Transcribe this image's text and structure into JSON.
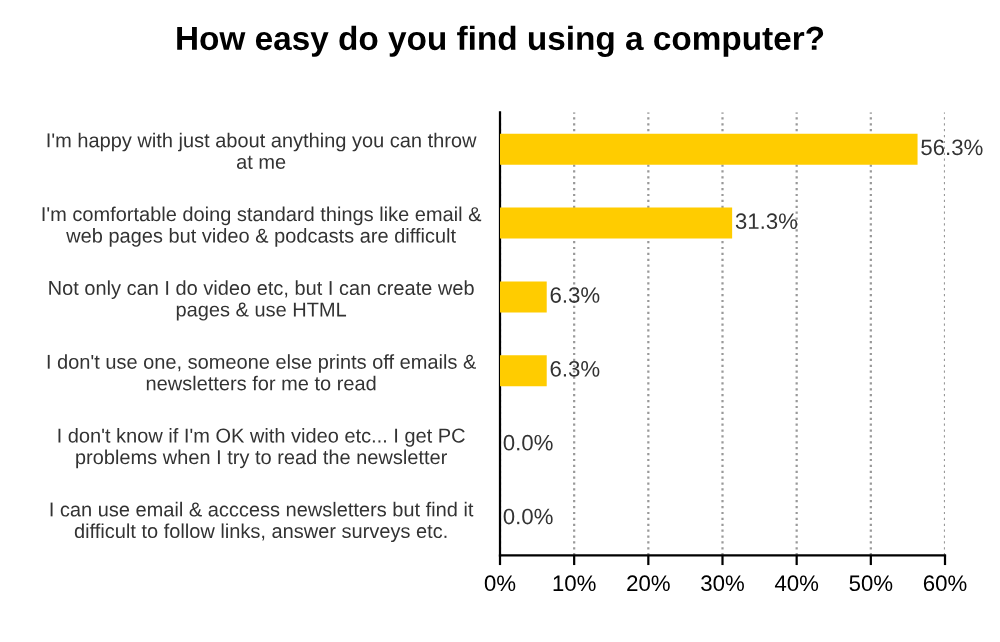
{
  "chart_data": {
    "type": "bar",
    "orientation": "horizontal",
    "title": "How easy do you find using a computer?",
    "categories": [
      "I'm happy with just about anything you can throw at me",
      "I'm comfortable doing standard things like email & web pages but video & podcasts are difficult",
      "Not only can I do video etc, but I can create web pages & use HTML",
      "I don't use one, someone else prints off emails & newsletters for me to read",
      "I don't know if I'm OK with video etc... I get PC problems when I try to read the newsletter",
      "I can use email & acccess newsletters but find it difficult to follow links, answer surveys etc."
    ],
    "values": [
      56.3,
      31.3,
      6.3,
      6.3,
      0.0,
      0.0
    ],
    "value_labels": [
      "56.3%",
      "31.3%",
      "6.3%",
      "6.3%",
      "0.0%",
      "0.0%"
    ],
    "color": "#ffcc00",
    "xlim": [
      0,
      60
    ],
    "xticks": [
      {
        "value": 0,
        "label": "0%"
      },
      {
        "value": 10,
        "label": "10%"
      },
      {
        "value": 20,
        "label": "20%"
      },
      {
        "value": 30,
        "label": "30%"
      },
      {
        "value": 40,
        "label": "40%"
      },
      {
        "value": 50,
        "label": "50%"
      },
      {
        "value": 60,
        "label": "60%"
      }
    ],
    "grid": "x"
  }
}
